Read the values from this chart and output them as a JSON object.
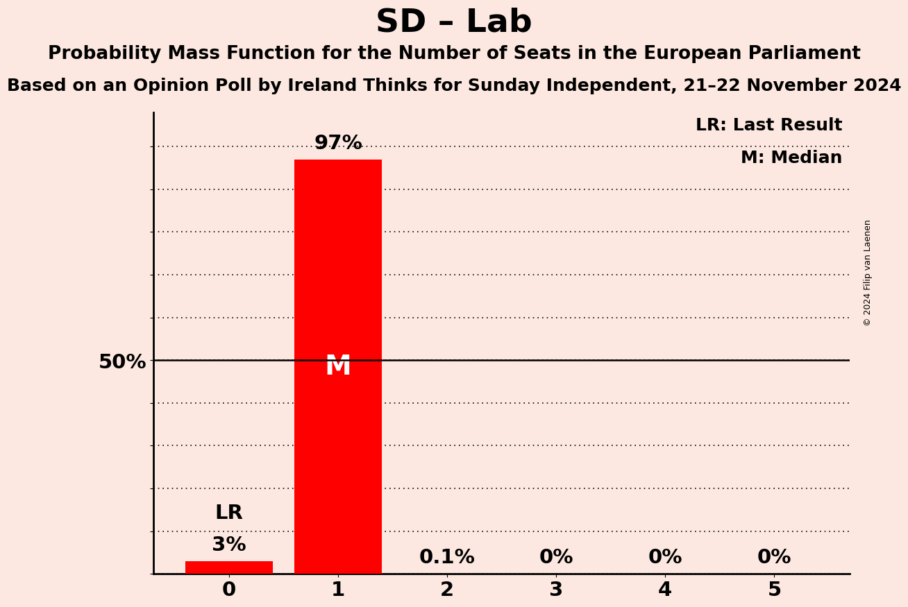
{
  "title": "SD – Lab",
  "subtitle1": "Probability Mass Function for the Number of Seats in the European Parliament",
  "subtitle2": "Based on an Opinion Poll by Ireland Thinks for Sunday Independent, 21–22 November 2024",
  "copyright": "© 2024 Filip van Laenen",
  "categories": [
    0,
    1,
    2,
    3,
    4,
    5
  ],
  "values": [
    0.03,
    0.97,
    0.001,
    0.0,
    0.0,
    0.0
  ],
  "bar_color": "#ff0000",
  "background_color": "#fce8e0",
  "bar_labels": [
    "3%",
    "97%",
    "0.1%",
    "0%",
    "0%",
    "0%"
  ],
  "median_bar": 1,
  "last_result_bar": 0,
  "median_label": "M",
  "lr_label": "LR",
  "legend_lr": "LR: Last Result",
  "legend_m": "M: Median",
  "ylim": [
    0,
    1.08
  ],
  "yticks": [
    0.0,
    0.1,
    0.2,
    0.3,
    0.4,
    0.5,
    0.6,
    0.7,
    0.8,
    0.9,
    1.0
  ],
  "ytick_labels": [
    "",
    "",
    "",
    "",
    "",
    "50%",
    "",
    "",
    "",
    "",
    ""
  ],
  "title_fontsize": 34,
  "subtitle1_fontsize": 19,
  "subtitle2_fontsize": 18,
  "label_fontsize": 21,
  "tick_fontsize": 21,
  "legend_fontsize": 18,
  "median_label_fontsize": 28,
  "lr_label_fontsize": 21,
  "copyright_fontsize": 9
}
